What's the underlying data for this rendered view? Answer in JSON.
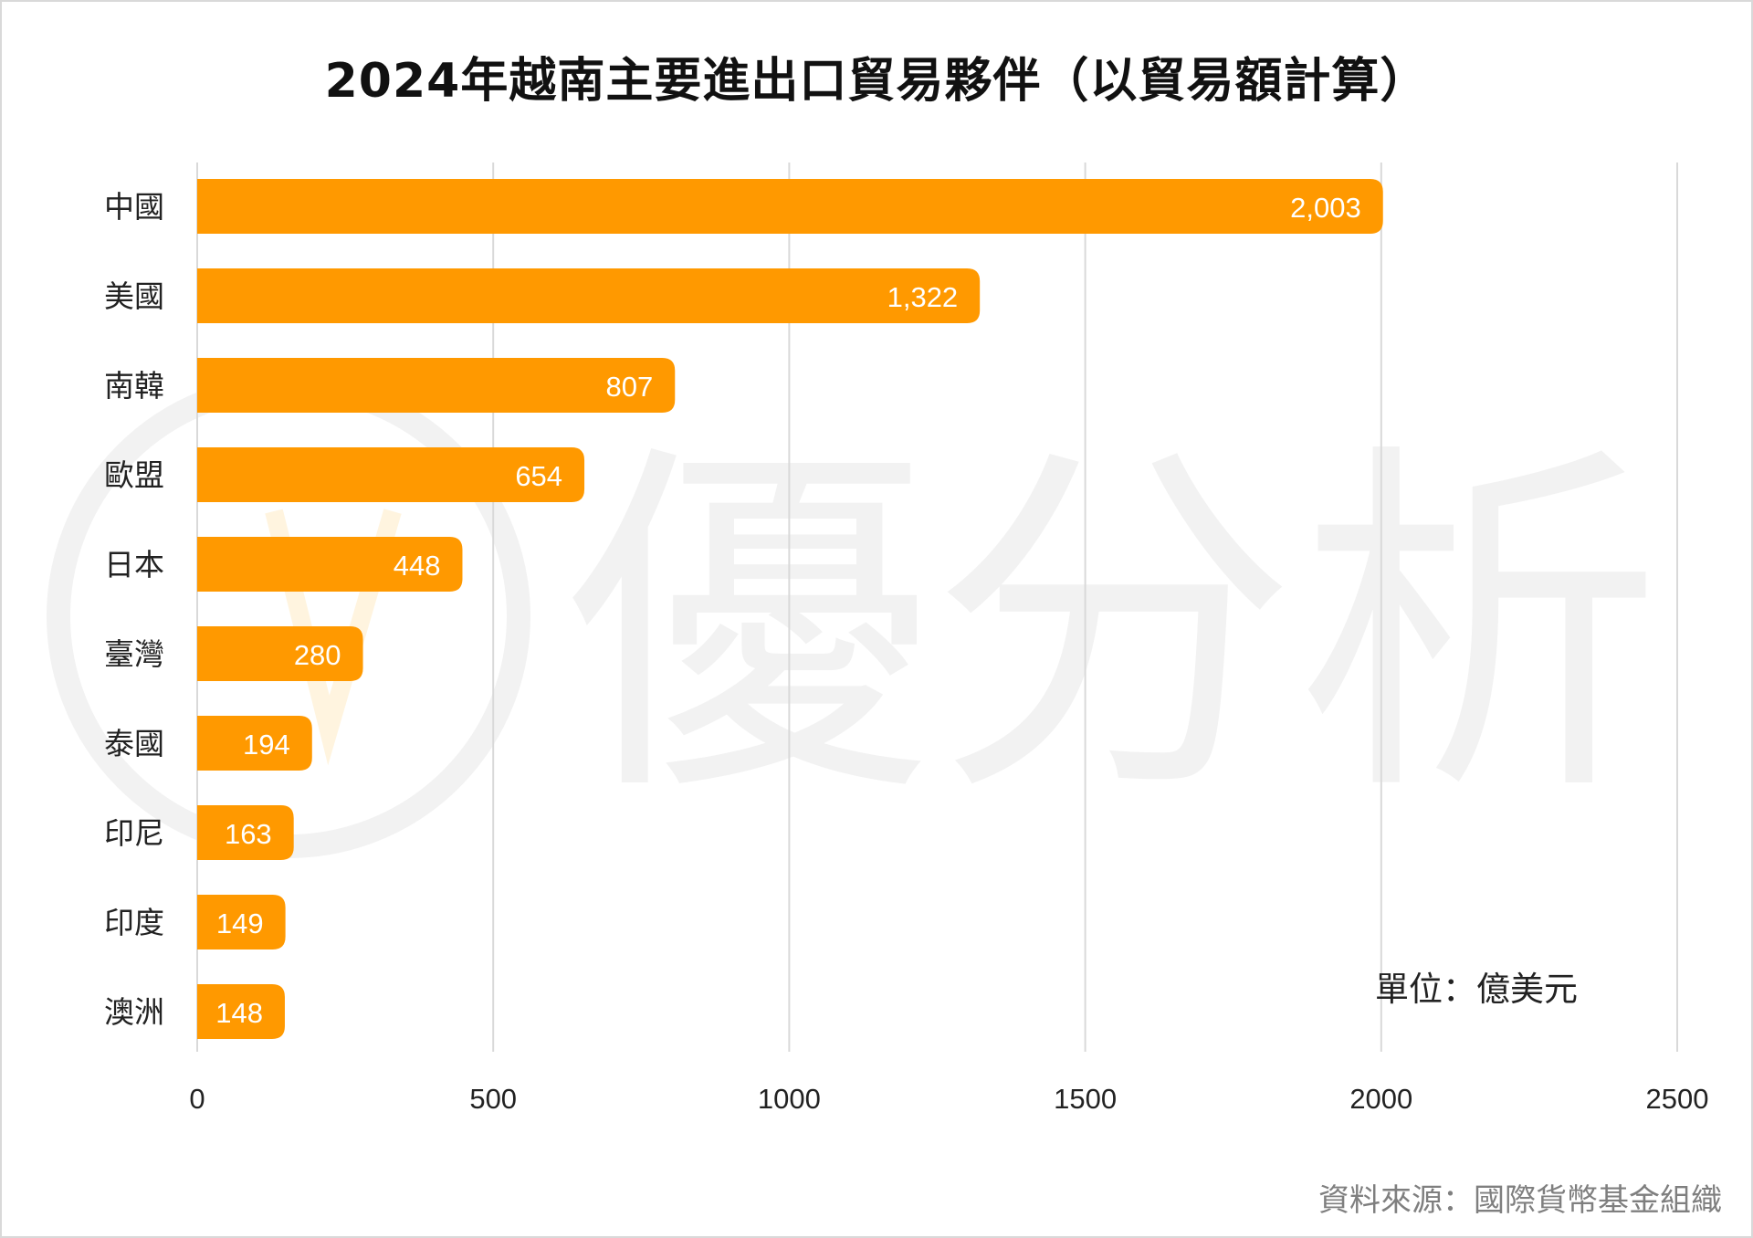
{
  "chart_data": {
    "type": "bar",
    "orientation": "horizontal",
    "title": "2024年越南主要進出口貿易夥伴（以貿易額計算）",
    "unit_label": "單位：億美元",
    "source": "資料來源：國際貨幣基金組織",
    "watermark": "優分析",
    "categories": [
      "中國",
      "美國",
      "南韓",
      "歐盟",
      "日本",
      "臺灣",
      "泰國",
      "印尼",
      "印度",
      "澳洲"
    ],
    "values": [
      2003,
      1322,
      807,
      654,
      448,
      280,
      194,
      163,
      149,
      148
    ],
    "value_labels": [
      "2,003",
      "1,322",
      "807",
      "654",
      "448",
      "280",
      "194",
      "163",
      "149",
      "148"
    ],
    "x_ticks": [
      "0",
      "500",
      "1000",
      "1500",
      "2000",
      "2500"
    ],
    "xlim": [
      0,
      2500
    ],
    "grid": "vertical",
    "legend": "none",
    "colors": {
      "bar": "#FF9900",
      "bar_label": "#ffffff",
      "grid": "#d9d9d9",
      "watermark": "#f2f2f2",
      "watermark_accent": "#fff4df"
    }
  }
}
